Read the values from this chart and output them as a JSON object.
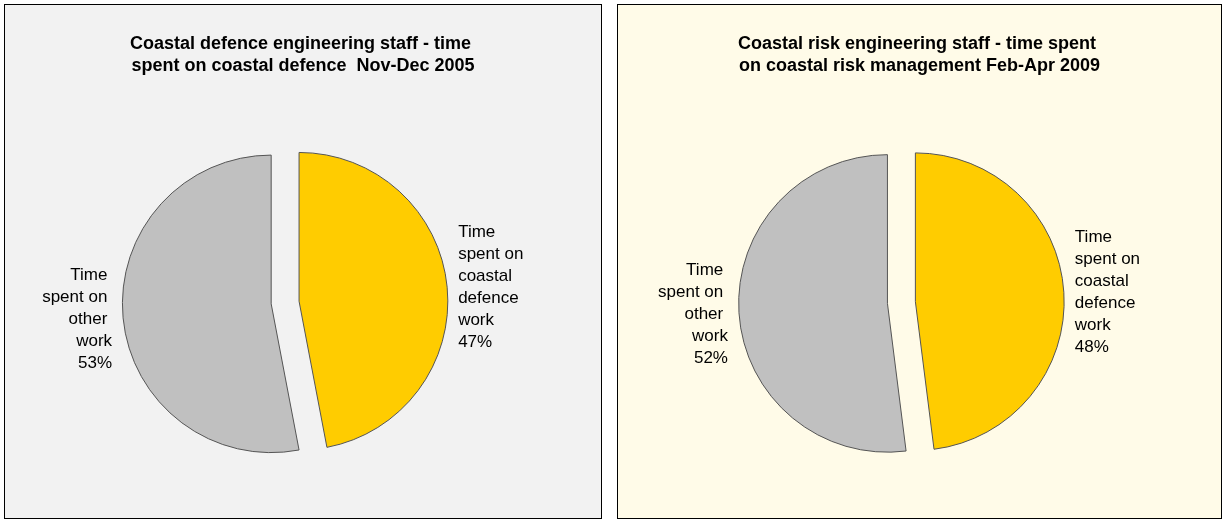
{
  "chart_data": [
    {
      "type": "pie",
      "title": "Coastal defence engineering staff - time spent on coastal defence  Nov-Dec 2005",
      "categories": [
        "Time spent on coastal defence work",
        "Time spent on other work"
      ],
      "values": [
        47,
        53
      ],
      "value_labels": [
        "47%",
        "53%"
      ],
      "colors": [
        "#ffcc00",
        "#c0c0c0"
      ]
    },
    {
      "type": "pie",
      "title": "Coastal risk engineering staff - time spent on coastal risk management Feb-Apr 2009",
      "categories": [
        "Time spent on coastal defence work",
        "Time spent on other work"
      ],
      "values": [
        48,
        52
      ],
      "value_labels": [
        "48%",
        "52%"
      ],
      "colors": [
        "#ffcc00",
        "#c0c0c0"
      ]
    }
  ]
}
